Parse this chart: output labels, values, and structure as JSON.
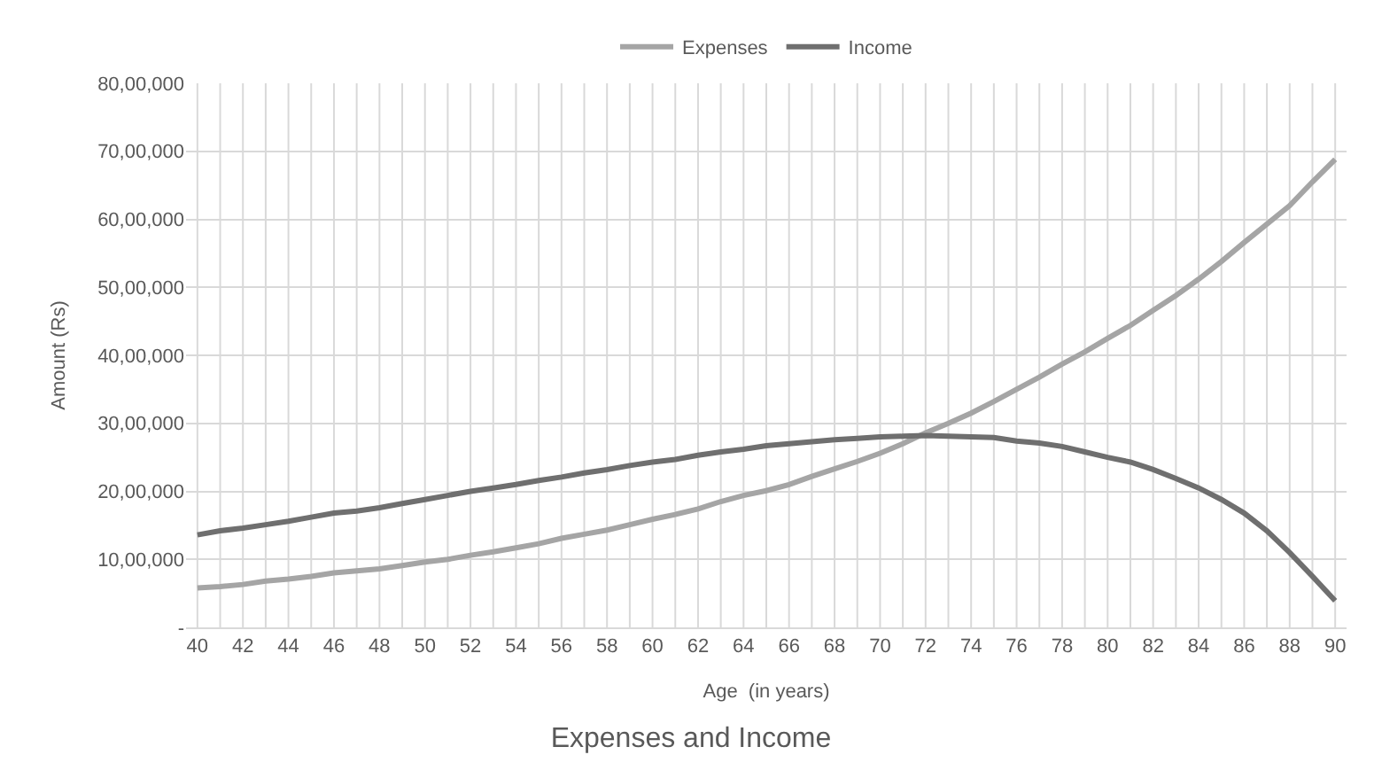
{
  "chart_data": {
    "type": "line",
    "title": "Expenses and Income",
    "xlabel": "Age  (in years)",
    "ylabel": "Amount (Rs)",
    "categories": [
      "40",
      null,
      "42",
      null,
      "44",
      null,
      "46",
      null,
      "48",
      null,
      "50",
      null,
      "52",
      null,
      "54",
      null,
      "56",
      null,
      "58",
      null,
      "60",
      null,
      "62",
      null,
      "64",
      null,
      "66",
      null,
      "68",
      null,
      "70",
      null,
      "72",
      null,
      "74",
      null,
      "76",
      null,
      "78",
      null,
      "80",
      null,
      "82",
      null,
      "84",
      null,
      "86",
      null,
      "88",
      null,
      "90"
    ],
    "series": [
      {
        "name": "Expenses",
        "color": "#a5a5a5",
        "values": [
          580000,
          600000,
          630000,
          680000,
          710000,
          750000,
          800000,
          830000,
          860000,
          910000,
          960000,
          1000000,
          1060000,
          1110000,
          1170000,
          1230000,
          1310000,
          1370000,
          1430000,
          1510000,
          1590000,
          1660000,
          1740000,
          1850000,
          1940000,
          2010000,
          2100000,
          2220000,
          2330000,
          2440000,
          2560000,
          2700000,
          2860000,
          3000000,
          3150000,
          3320000,
          3500000,
          3680000,
          3870000,
          4050000,
          4250000,
          4440000,
          4660000,
          4880000,
          5120000,
          5380000,
          5660000,
          5930000,
          6200000,
          6550000,
          6880000
        ]
      },
      {
        "name": "Income",
        "color": "#6f6f6f",
        "values": [
          1360000,
          1420000,
          1460000,
          1510000,
          1560000,
          1620000,
          1680000,
          1710000,
          1760000,
          1820000,
          1880000,
          1940000,
          2000000,
          2050000,
          2100000,
          2160000,
          2210000,
          2270000,
          2320000,
          2380000,
          2430000,
          2470000,
          2530000,
          2580000,
          2620000,
          2670000,
          2700000,
          2730000,
          2760000,
          2780000,
          2800000,
          2810000,
          2820000,
          2810000,
          2800000,
          2790000,
          2740000,
          2710000,
          2660000,
          2580000,
          2500000,
          2430000,
          2320000,
          2190000,
          2050000,
          1880000,
          1680000,
          1420000,
          1100000,
          750000,
          390000
        ]
      }
    ],
    "ylim": [
      0,
      8000000
    ],
    "yticks": [
      {
        "value": 0,
        "label": "-"
      },
      {
        "value": 1000000,
        "label": "10,00,000"
      },
      {
        "value": 2000000,
        "label": "20,00,000"
      },
      {
        "value": 3000000,
        "label": "30,00,000"
      },
      {
        "value": 4000000,
        "label": "40,00,000"
      },
      {
        "value": 5000000,
        "label": "50,00,000"
      },
      {
        "value": 6000000,
        "label": "60,00,000"
      },
      {
        "value": 7000000,
        "label": "70,00,000"
      },
      {
        "value": 8000000,
        "label": "80,00,000"
      }
    ],
    "grid": true,
    "legend": "top",
    "marker": "none",
    "line_style": "solid"
  }
}
